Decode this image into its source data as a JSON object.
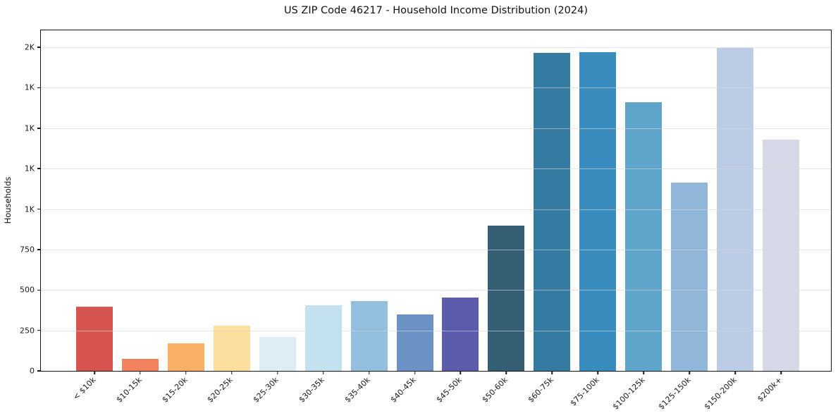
{
  "chart_data": {
    "type": "bar",
    "title": "US ZIP Code 46217 - Household Income Distribution (2024)",
    "xlabel": "",
    "ylabel": "Households",
    "categories": [
      "< $10k",
      "$10-15k",
      "$15-20k",
      "$20-25k",
      "$25-30k",
      "$30-35k",
      "$35-40k",
      "$40-45k",
      "$45-50k",
      "$50-60k",
      "$60-75k",
      "$75-100k",
      "$100-125k",
      "$125-150k",
      "$150-200k",
      "$200k+"
    ],
    "values": [
      395,
      75,
      170,
      280,
      210,
      405,
      430,
      350,
      455,
      900,
      1965,
      1970,
      1660,
      1165,
      1995,
      1430
    ],
    "bar_colors": [
      "#d6564f",
      "#f0825e",
      "#f9b066",
      "#fcdf9e",
      "#ddedf3",
      "#c3e1ef",
      "#93bfdf",
      "#6a92c5",
      "#5c5cad",
      "#345e72",
      "#357aa1",
      "#3a8cbe",
      "#5ea5c9",
      "#90b7da",
      "#bccce4",
      "#d6d8e7"
    ],
    "ytick_values": [
      0,
      250,
      500,
      750,
      1000,
      1250,
      1500,
      1750,
      2000
    ],
    "ytick_labels": [
      "0",
      "250",
      "500",
      "750",
      "1K",
      "1K",
      "1K",
      "1K",
      "2K"
    ],
    "ylim": [
      0,
      2105
    ],
    "grid": "horizontal",
    "grid_color": "rgba(214,214,214,0.6)",
    "axis_color": "#151515",
    "tick_label_color": "#1a1a1a",
    "background": "#ffffff",
    "legend": false
  }
}
